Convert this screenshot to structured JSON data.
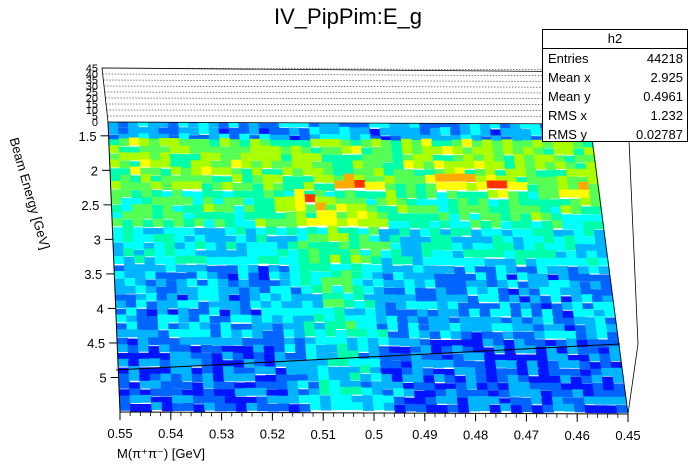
{
  "title": "IV_PipPim:E_g",
  "stats": {
    "name": "h2",
    "rows": [
      {
        "label": "Entries",
        "value": "44218"
      },
      {
        "label": "Mean x",
        "value": "2.925"
      },
      {
        "label": "Mean y",
        "value": "0.4961"
      },
      {
        "label": "RMS x",
        "value": "1.232"
      },
      {
        "label": "RMS y",
        "value": "0.02787"
      }
    ]
  },
  "chart_data": {
    "type": "heatmap",
    "title": "IV_PipPim:E_g",
    "xlabel": "M(π⁺π⁻) [GeV]",
    "ylabel": "Beam Energy [GeV]",
    "x_ticks": [
      "0.55",
      "0.54",
      "0.53",
      "0.52",
      "0.51",
      "0.5",
      "0.49",
      "0.48",
      "0.47",
      "0.46",
      "0.45"
    ],
    "y_ticks": [
      "1.5",
      "2",
      "2.5",
      "3",
      "3.5",
      "4",
      "4.5",
      "5"
    ],
    "z_ticks": [
      "0",
      "5",
      "10",
      "15",
      "20",
      "25",
      "30",
      "35",
      "40",
      "45"
    ],
    "xlim": [
      0.45,
      0.55
    ],
    "ylim": [
      1.3,
      5.5
    ],
    "zlim": [
      0,
      45
    ],
    "entries": 44218,
    "mean_x": 2.925,
    "mean_y": 0.4961,
    "rms_x": 1.232,
    "rms_y": 0.02787,
    "palette": [
      "#0000b4",
      "#0014ff",
      "#0064ff",
      "#00b4ff",
      "#00ffff",
      "#00ffaa",
      "#55ff55",
      "#aaff00",
      "#ffff00",
      "#ffaa00",
      "#ff3200"
    ],
    "bands": [
      {
        "y_range": [
          1.3,
          1.6
        ],
        "level": 0.28
      },
      {
        "y_range": [
          1.6,
          2.4
        ],
        "level": 0.62
      },
      {
        "y_range": [
          2.4,
          2.9
        ],
        "level": 0.52
      },
      {
        "y_range": [
          2.9,
          3.4
        ],
        "level": 0.4
      },
      {
        "y_range": [
          3.4,
          4.4
        ],
        "level": 0.28
      },
      {
        "y_range": [
          4.4,
          5.5
        ],
        "level": 0.2
      }
    ],
    "hotspots": [
      {
        "x": 0.5,
        "y": 2.3
      },
      {
        "x": 0.48,
        "y": 2.2
      },
      {
        "x": 0.47,
        "y": 2.3
      },
      {
        "x": 0.455,
        "y": 2.4
      },
      {
        "x": 0.51,
        "y": 2.5
      }
    ]
  }
}
